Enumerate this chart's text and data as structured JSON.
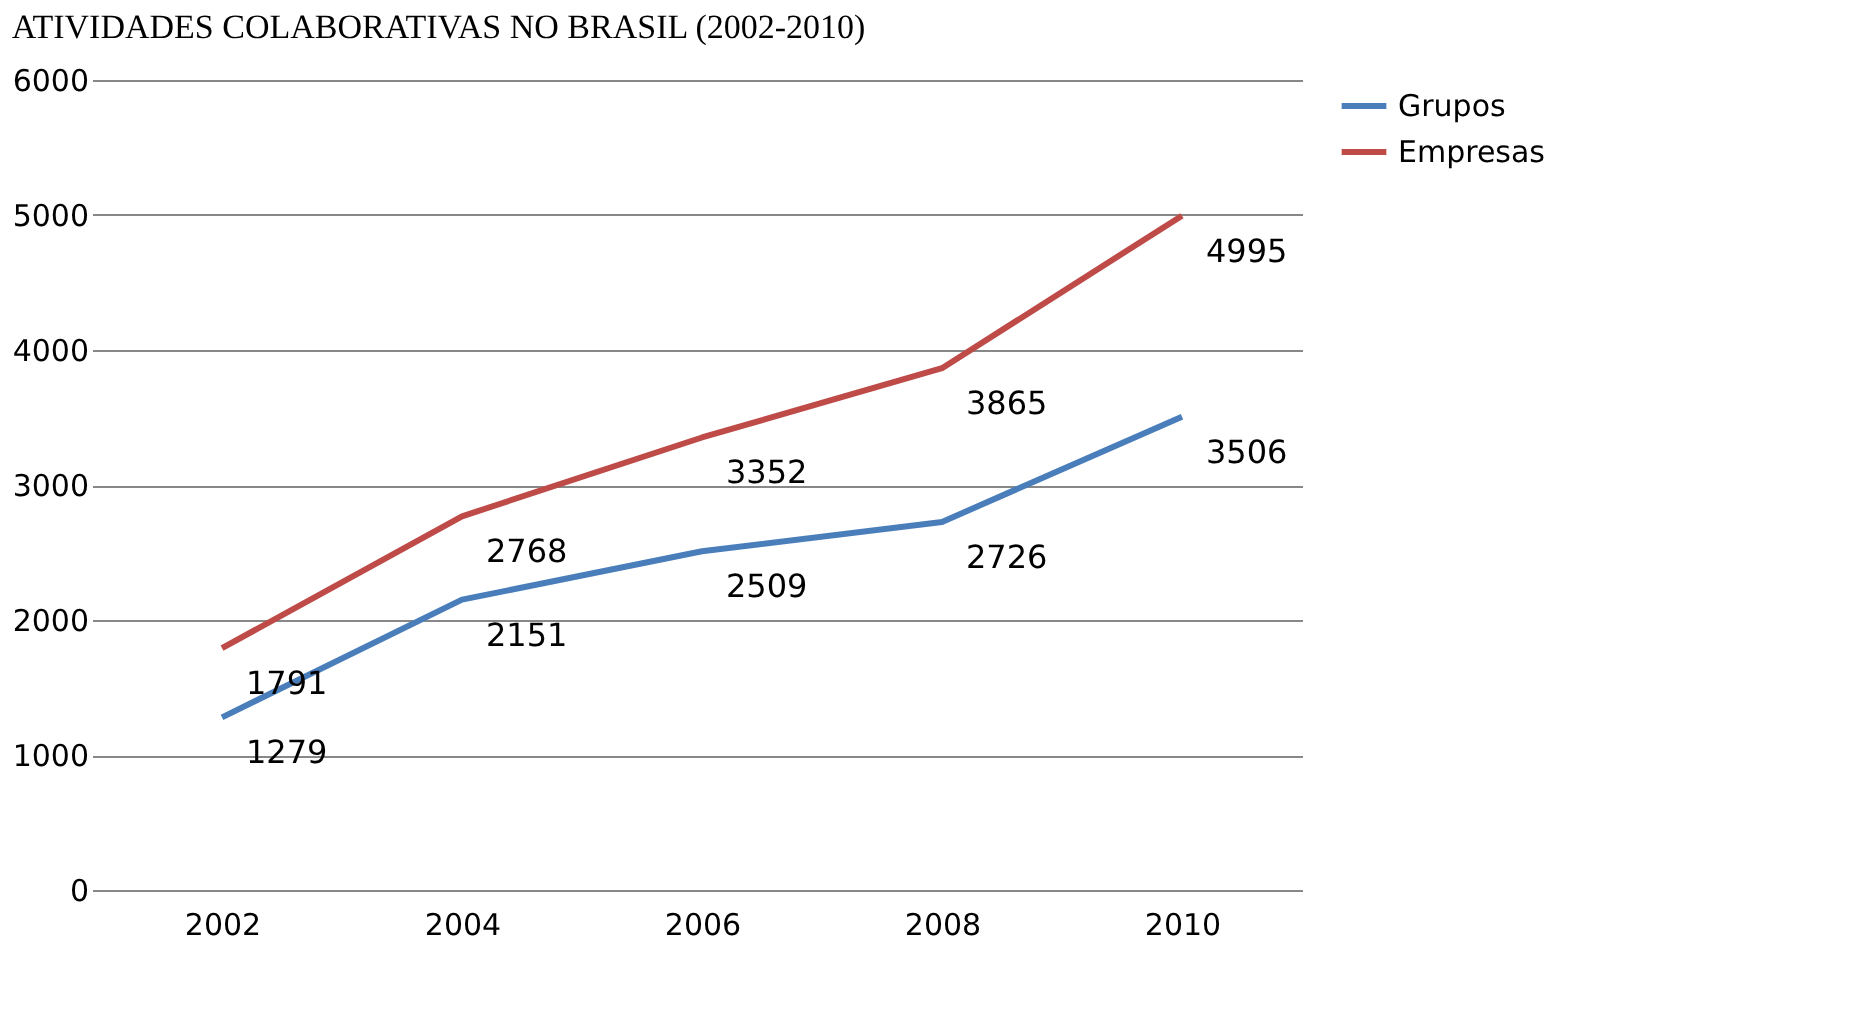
{
  "chart_data": {
    "type": "line",
    "title": "ATIVIDADES COLABORATIVAS NO BRASIL (2002-2010)",
    "categories": [
      "2002",
      "2004",
      "2006",
      "2008",
      "2010"
    ],
    "series": [
      {
        "name": "Grupos",
        "color": "#4a7ebb",
        "values": [
          1279,
          2151,
          2509,
          2726,
          3506
        ]
      },
      {
        "name": "Empresas",
        "color": "#be4b48",
        "values": [
          1791,
          2768,
          3352,
          3865,
          4995
        ]
      }
    ],
    "ylim": [
      0,
      6000
    ],
    "yticks": [
      0,
      1000,
      2000,
      3000,
      4000,
      5000,
      6000
    ],
    "grid": "y",
    "legend": "right",
    "data_labels": true,
    "marker": "none",
    "line_style": "solid"
  }
}
